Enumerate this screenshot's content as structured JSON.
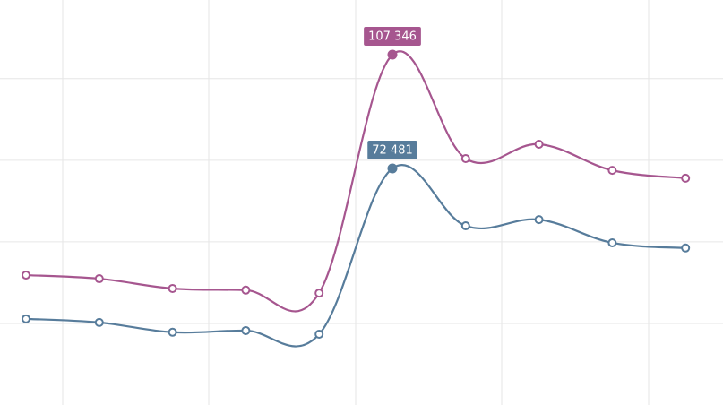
{
  "chart_data": {
    "type": "line",
    "categories": [
      null,
      null,
      null,
      null,
      null,
      null,
      null,
      null,
      null,
      null
    ],
    "series": [
      {
        "name": null,
        "color": "#a6568f",
        "values": [
          39800,
          38700,
          35700,
          35200,
          34300,
          107346,
          75500,
          79900,
          71900,
          69500
        ],
        "value_labels": [
          null,
          null,
          null,
          null,
          null,
          "107 346",
          null,
          null,
          null,
          null
        ]
      },
      {
        "name": null,
        "color": "#577c9b",
        "values": [
          26400,
          25300,
          22300,
          22800,
          21700,
          72481,
          54900,
          56800,
          49700,
          48100
        ],
        "value_labels": [
          null,
          null,
          null,
          null,
          null,
          "72 481",
          null,
          null,
          null,
          null
        ]
      }
    ],
    "ylim": [
      0,
      124100
    ],
    "yticks": [
      25000,
      50000,
      75000,
      100000
    ],
    "grid": true
  }
}
